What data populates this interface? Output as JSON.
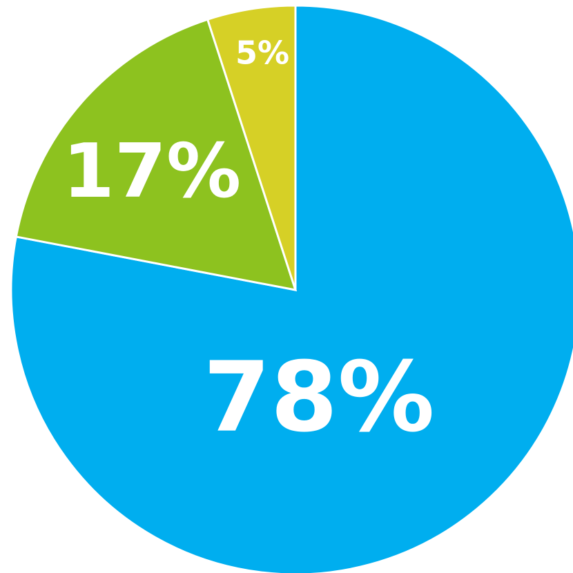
{
  "chart_data": {
    "type": "pie",
    "categories": [
      null,
      null,
      null
    ],
    "values": [
      78,
      17,
      5
    ],
    "value_labels": [
      "78%",
      "17%",
      "5%"
    ],
    "colors": [
      "#00aeef",
      "#8dc21f",
      "#d6d026"
    ]
  }
}
